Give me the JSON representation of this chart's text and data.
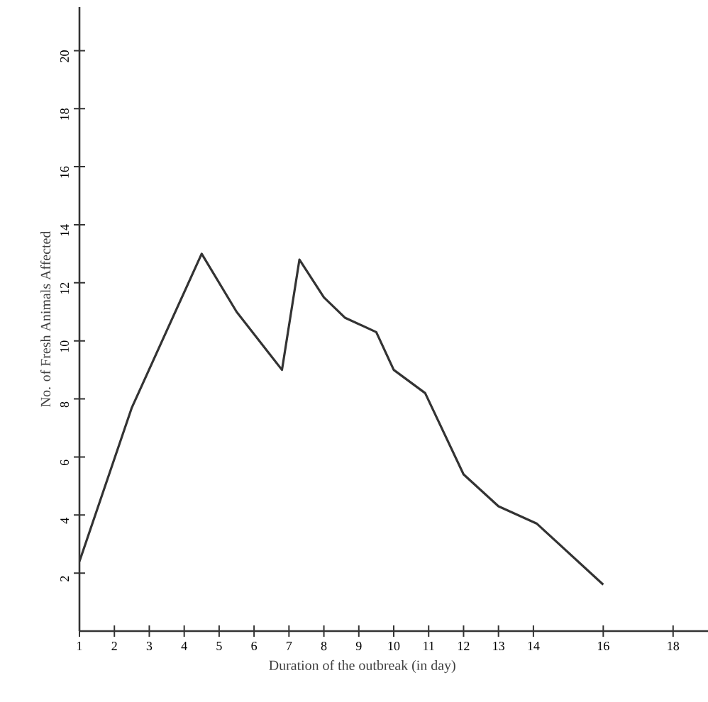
{
  "chart_data": {
    "type": "line",
    "xlabel": "Duration of the outbreak (in day)",
    "ylabel": "No. of Fresh Animals Affected",
    "x": [
      1,
      2.5,
      4.5,
      5.5,
      6.8,
      7.3,
      8,
      8.6,
      9.5,
      10,
      10.9,
      12,
      13,
      14.1,
      16
    ],
    "series": [
      {
        "color": "#333333",
        "values": [
          2.4,
          7.7,
          13.0,
          11.0,
          9.0,
          12.8,
          11.5,
          10.8,
          10.3,
          9.0,
          8.2,
          5.4,
          4.3,
          3.7,
          1.6
        ]
      }
    ],
    "xlim": [
      1,
      19
    ],
    "ylim": [
      0,
      21.5
    ],
    "xticks": [
      1,
      2,
      3,
      4,
      5,
      6,
      7,
      8,
      9,
      10,
      11,
      12,
      13,
      14,
      16,
      18
    ],
    "yticks": [
      2,
      4,
      6,
      8,
      10,
      12,
      14,
      16,
      18,
      20
    ],
    "marker": "none",
    "line_style": "solid"
  }
}
